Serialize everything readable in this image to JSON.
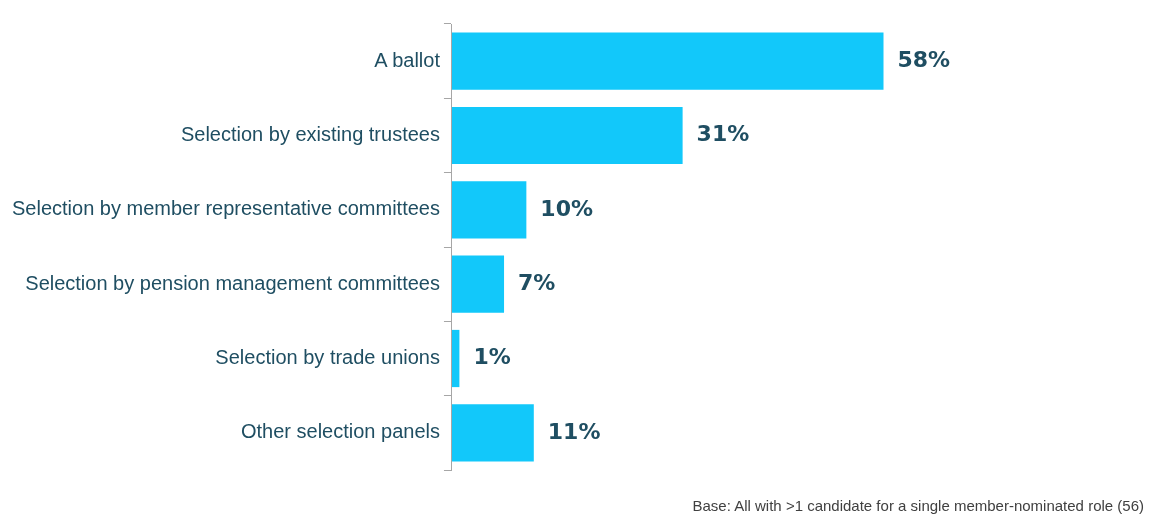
{
  "chart_data": {
    "type": "bar",
    "orientation": "horizontal",
    "categories": [
      "A ballot",
      "Selection by existing trustees",
      "Selection by member representative committees",
      "Selection by pension management committees",
      "Selection by trade unions",
      "Other selection panels"
    ],
    "values": [
      58,
      31,
      10,
      7,
      1,
      11
    ],
    "value_labels": [
      "58%",
      "31%",
      "10%",
      "7%",
      "1%",
      "11%"
    ],
    "color": "#12c8fa",
    "annotations": [
      "Base: All with >1 candidate for a single member-nominated role (56)"
    ]
  }
}
